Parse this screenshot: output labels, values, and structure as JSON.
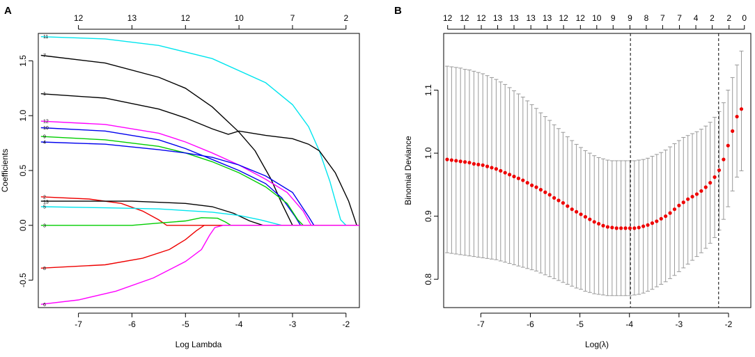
{
  "chart_data": [
    {
      "panel_label": "A",
      "type": "line",
      "xlabel": "Log Lambda",
      "ylabel": "Coefficients",
      "xlim": [
        -7.75,
        -1.75
      ],
      "ylim": [
        -0.75,
        1.75
      ],
      "x_ticks": [
        -7,
        -6,
        -5,
        -4,
        -3,
        -2
      ],
      "y_ticks": [
        -0.5,
        0.0,
        0.5,
        1.0,
        1.5
      ],
      "x_tick_labels": [
        "-7",
        "-6",
        "-5",
        "-4",
        "-3",
        "-2"
      ],
      "y_tick_labels": [
        "-0.5",
        "0.0",
        "0.5",
        "1.0",
        "1.5"
      ],
      "top_axis": {
        "positions": [
          -7.0,
          -6.0,
          -5.0,
          -4.0,
          -3.0,
          -2.0
        ],
        "labels": [
          "12",
          "13",
          "12",
          "10",
          "7",
          "2"
        ]
      },
      "series": [
        {
          "name": "11",
          "color": "#00e5ee",
          "points": [
            [
              -7.7,
              1.72
            ],
            [
              -6.5,
              1.7
            ],
            [
              -5.5,
              1.64
            ],
            [
              -4.5,
              1.52
            ],
            [
              -3.5,
              1.3
            ],
            [
              -3.0,
              1.1
            ],
            [
              -2.7,
              0.9
            ],
            [
              -2.5,
              0.68
            ],
            [
              -2.3,
              0.4
            ],
            [
              -2.1,
              0.05
            ],
            [
              -2.0,
              0.0
            ],
            [
              -1.75,
              0.0
            ]
          ]
        },
        {
          "name": "7",
          "color": "#000000",
          "points": [
            [
              -7.7,
              1.55
            ],
            [
              -6.5,
              1.48
            ],
            [
              -5.5,
              1.35
            ],
            [
              -5.0,
              1.25
            ],
            [
              -4.5,
              1.08
            ],
            [
              -4.0,
              0.85
            ],
            [
              -3.7,
              0.68
            ],
            [
              -3.4,
              0.42
            ],
            [
              -3.2,
              0.2
            ],
            [
              -3.0,
              0.0
            ],
            [
              -1.75,
              0.0
            ]
          ]
        },
        {
          "name": "1",
          "color": "#000000",
          "points": [
            [
              -7.7,
              1.2
            ],
            [
              -6.5,
              1.16
            ],
            [
              -5.5,
              1.06
            ],
            [
              -5.0,
              0.98
            ],
            [
              -4.5,
              0.88
            ],
            [
              -4.2,
              0.83
            ],
            [
              -4.0,
              0.86
            ],
            [
              -3.5,
              0.82
            ],
            [
              -3.0,
              0.79
            ],
            [
              -2.7,
              0.74
            ],
            [
              -2.5,
              0.68
            ],
            [
              -2.2,
              0.48
            ],
            [
              -1.95,
              0.22
            ],
            [
              -1.8,
              0.0
            ],
            [
              -1.75,
              0.0
            ]
          ]
        },
        {
          "name": "12",
          "color": "#ff00ff",
          "points": [
            [
              -7.7,
              0.95
            ],
            [
              -6.5,
              0.92
            ],
            [
              -5.5,
              0.84
            ],
            [
              -5.0,
              0.76
            ],
            [
              -4.5,
              0.66
            ],
            [
              -4.0,
              0.55
            ],
            [
              -3.5,
              0.42
            ],
            [
              -3.1,
              0.3
            ],
            [
              -2.8,
              0.13
            ],
            [
              -2.65,
              0.0
            ],
            [
              -1.75,
              0.0
            ]
          ]
        },
        {
          "name": "10",
          "color": "#0000ee",
          "points": [
            [
              -7.7,
              0.89
            ],
            [
              -6.5,
              0.86
            ],
            [
              -5.5,
              0.78
            ],
            [
              -5.0,
              0.7
            ],
            [
              -4.5,
              0.6
            ],
            [
              -4.0,
              0.5
            ],
            [
              -3.5,
              0.38
            ],
            [
              -3.2,
              0.25
            ],
            [
              -2.95,
              0.08
            ],
            [
              -2.85,
              0.0
            ],
            [
              -1.75,
              0.0
            ]
          ]
        },
        {
          "name": "9",
          "color": "#00cd00",
          "points": [
            [
              -7.7,
              0.81
            ],
            [
              -6.5,
              0.78
            ],
            [
              -5.5,
              0.72
            ],
            [
              -5.0,
              0.66
            ],
            [
              -4.5,
              0.58
            ],
            [
              -4.0,
              0.48
            ],
            [
              -3.5,
              0.35
            ],
            [
              -3.1,
              0.2
            ],
            [
              -2.9,
              0.05
            ],
            [
              -2.8,
              0.0
            ],
            [
              -1.75,
              0.0
            ]
          ]
        },
        {
          "name": "4",
          "color": "#0000ee",
          "points": [
            [
              -7.7,
              0.76
            ],
            [
              -6.5,
              0.74
            ],
            [
              -5.5,
              0.69
            ],
            [
              -5.0,
              0.66
            ],
            [
              -4.5,
              0.62
            ],
            [
              -4.0,
              0.55
            ],
            [
              -3.5,
              0.45
            ],
            [
              -3.0,
              0.3
            ],
            [
              -2.7,
              0.08
            ],
            [
              -2.6,
              0.0
            ],
            [
              -1.75,
              0.0
            ]
          ]
        },
        {
          "name": "2",
          "color": "#ee0000",
          "points": [
            [
              -7.7,
              0.26
            ],
            [
              -6.8,
              0.24
            ],
            [
              -6.2,
              0.2
            ],
            [
              -5.8,
              0.13
            ],
            [
              -5.5,
              0.05
            ],
            [
              -5.35,
              0.0
            ],
            [
              -1.75,
              0.0
            ]
          ]
        },
        {
          "name": "13",
          "color": "#000000",
          "points": [
            [
              -7.7,
              0.22
            ],
            [
              -6.0,
              0.22
            ],
            [
              -5.0,
              0.2
            ],
            [
              -4.5,
              0.17
            ],
            [
              -4.1,
              0.11
            ],
            [
              -3.8,
              0.04
            ],
            [
              -3.55,
              0.0
            ],
            [
              -1.75,
              0.0
            ]
          ]
        },
        {
          "name": "5",
          "color": "#00e5ee",
          "points": [
            [
              -7.7,
              0.17
            ],
            [
              -6.5,
              0.16
            ],
            [
              -5.5,
              0.15
            ],
            [
              -4.5,
              0.12
            ],
            [
              -4.0,
              0.09
            ],
            [
              -3.6,
              0.05
            ],
            [
              -3.2,
              0.0
            ],
            [
              -1.75,
              0.0
            ]
          ]
        },
        {
          "name": "3",
          "color": "#00cd00",
          "points": [
            [
              -7.7,
              0.0
            ],
            [
              -6.0,
              0.0
            ],
            [
              -5.5,
              0.02
            ],
            [
              -5.0,
              0.04
            ],
            [
              -4.7,
              0.07
            ],
            [
              -4.4,
              0.065
            ],
            [
              -4.25,
              0.03
            ],
            [
              -4.15,
              0.0
            ],
            [
              -1.75,
              0.0
            ]
          ]
        },
        {
          "name": "8",
          "color": "#ee0000",
          "points": [
            [
              -7.7,
              -0.39
            ],
            [
              -6.5,
              -0.36
            ],
            [
              -5.8,
              -0.3
            ],
            [
              -5.3,
              -0.22
            ],
            [
              -5.0,
              -0.13
            ],
            [
              -4.8,
              -0.05
            ],
            [
              -4.65,
              0.0
            ],
            [
              -1.75,
              0.0
            ]
          ]
        },
        {
          "name": "6",
          "color": "#ff00ff",
          "points": [
            [
              -7.7,
              -0.72
            ],
            [
              -7.0,
              -0.68
            ],
            [
              -6.3,
              -0.6
            ],
            [
              -5.6,
              -0.48
            ],
            [
              -5.0,
              -0.33
            ],
            [
              -4.7,
              -0.22
            ],
            [
              -4.55,
              -0.09
            ],
            [
              -4.45,
              -0.02
            ],
            [
              -4.3,
              0.0
            ],
            [
              -1.75,
              0.0
            ]
          ]
        }
      ]
    },
    {
      "panel_label": "B",
      "type": "scatter",
      "xlabel": "Log(λ)",
      "ylabel": "Binomial Deviance",
      "xlim": [
        -7.75,
        -1.55
      ],
      "ylim": [
        0.755,
        1.19
      ],
      "x_ticks": [
        -7,
        -6,
        -5,
        -4,
        -3,
        -2
      ],
      "y_ticks": [
        0.8,
        0.9,
        1.0,
        1.1
      ],
      "x_tick_labels": [
        "-7",
        "-6",
        "-5",
        "-4",
        "-3",
        "-2"
      ],
      "y_tick_labels": [
        "0.8",
        "0.9",
        "1.0",
        "1.1"
      ],
      "top_axis": {
        "positions": [
          -7.67,
          -7.33,
          -6.99,
          -6.66,
          -6.33,
          -5.99,
          -5.66,
          -5.33,
          -4.99,
          -4.66,
          -4.33,
          -3.99,
          -3.66,
          -3.33,
          -2.99,
          -2.66,
          -2.33,
          -1.99,
          -1.68
        ],
        "labels": [
          "12",
          "12",
          "12",
          "13",
          "13",
          "13",
          "13",
          "12",
          "12",
          "10",
          "9",
          "9",
          "8",
          "7",
          "7",
          "4",
          "2",
          "2",
          "0"
        ]
      },
      "vlines": [
        -3.98,
        -2.2
      ],
      "point_color": "#ee0000",
      "errorbar_color": "#999999",
      "x": [
        -7.68,
        -7.59,
        -7.5,
        -7.41,
        -7.32,
        -7.23,
        -7.14,
        -7.05,
        -6.96,
        -6.87,
        -6.78,
        -6.69,
        -6.6,
        -6.51,
        -6.42,
        -6.33,
        -6.24,
        -6.15,
        -6.06,
        -5.97,
        -5.88,
        -5.79,
        -5.7,
        -5.61,
        -5.52,
        -5.43,
        -5.34,
        -5.25,
        -5.16,
        -5.07,
        -4.98,
        -4.89,
        -4.8,
        -4.71,
        -4.62,
        -4.53,
        -4.44,
        -4.35,
        -4.26,
        -4.17,
        -4.08,
        -3.99,
        -3.9,
        -3.81,
        -3.72,
        -3.63,
        -3.54,
        -3.45,
        -3.36,
        -3.27,
        -3.18,
        -3.09,
        -3.0,
        -2.91,
        -2.82,
        -2.73,
        -2.64,
        -2.55,
        -2.46,
        -2.37,
        -2.28,
        -2.19,
        -2.1,
        -2.01,
        -1.92,
        -1.83,
        -1.74
      ],
      "mean": [
        0.99,
        0.989,
        0.988,
        0.987,
        0.986,
        0.985,
        0.983,
        0.982,
        0.981,
        0.979,
        0.977,
        0.975,
        0.972,
        0.969,
        0.966,
        0.963,
        0.96,
        0.957,
        0.953,
        0.949,
        0.946,
        0.942,
        0.938,
        0.934,
        0.929,
        0.925,
        0.921,
        0.916,
        0.911,
        0.907,
        0.903,
        0.899,
        0.895,
        0.891,
        0.888,
        0.885,
        0.883,
        0.882,
        0.881,
        0.881,
        0.881,
        0.881,
        0.881,
        0.882,
        0.884,
        0.886,
        0.889,
        0.892,
        0.896,
        0.9,
        0.905,
        0.911,
        0.917,
        0.922,
        0.927,
        0.931,
        0.935,
        0.94,
        0.946,
        0.953,
        0.962,
        0.973,
        0.99,
        1.012,
        1.035,
        1.058,
        1.07
      ],
      "upper": [
        1.138,
        1.137,
        1.136,
        1.135,
        1.133,
        1.132,
        1.13,
        1.128,
        1.126,
        1.123,
        1.12,
        1.117,
        1.113,
        1.109,
        1.104,
        1.099,
        1.094,
        1.089,
        1.083,
        1.077,
        1.071,
        1.064,
        1.058,
        1.052,
        1.045,
        1.039,
        1.033,
        1.026,
        1.02,
        1.014,
        1.009,
        1.004,
        1.0,
        0.996,
        0.993,
        0.991,
        0.989,
        0.988,
        0.988,
        0.988,
        0.988,
        0.988,
        0.988,
        0.989,
        0.99,
        0.992,
        0.995,
        0.998,
        1.001,
        1.005,
        1.01,
        1.015,
        1.02,
        1.025,
        1.028,
        1.031,
        1.034,
        1.038,
        1.043,
        1.049,
        1.057,
        1.066,
        1.08,
        1.1,
        1.12,
        1.14,
        1.162
      ],
      "lower": [
        0.842,
        0.841,
        0.84,
        0.839,
        0.838,
        0.837,
        0.836,
        0.835,
        0.834,
        0.833,
        0.832,
        0.831,
        0.829,
        0.827,
        0.825,
        0.823,
        0.821,
        0.819,
        0.817,
        0.815,
        0.813,
        0.81,
        0.807,
        0.804,
        0.801,
        0.798,
        0.795,
        0.792,
        0.789,
        0.786,
        0.784,
        0.781,
        0.779,
        0.777,
        0.776,
        0.775,
        0.774,
        0.774,
        0.774,
        0.774,
        0.774,
        0.774,
        0.775,
        0.776,
        0.778,
        0.781,
        0.784,
        0.788,
        0.792,
        0.796,
        0.801,
        0.806,
        0.812,
        0.818,
        0.824,
        0.83,
        0.836,
        0.842,
        0.849,
        0.857,
        0.866,
        0.878,
        0.895,
        0.915,
        0.94,
        0.962,
        0.972
      ]
    }
  ]
}
